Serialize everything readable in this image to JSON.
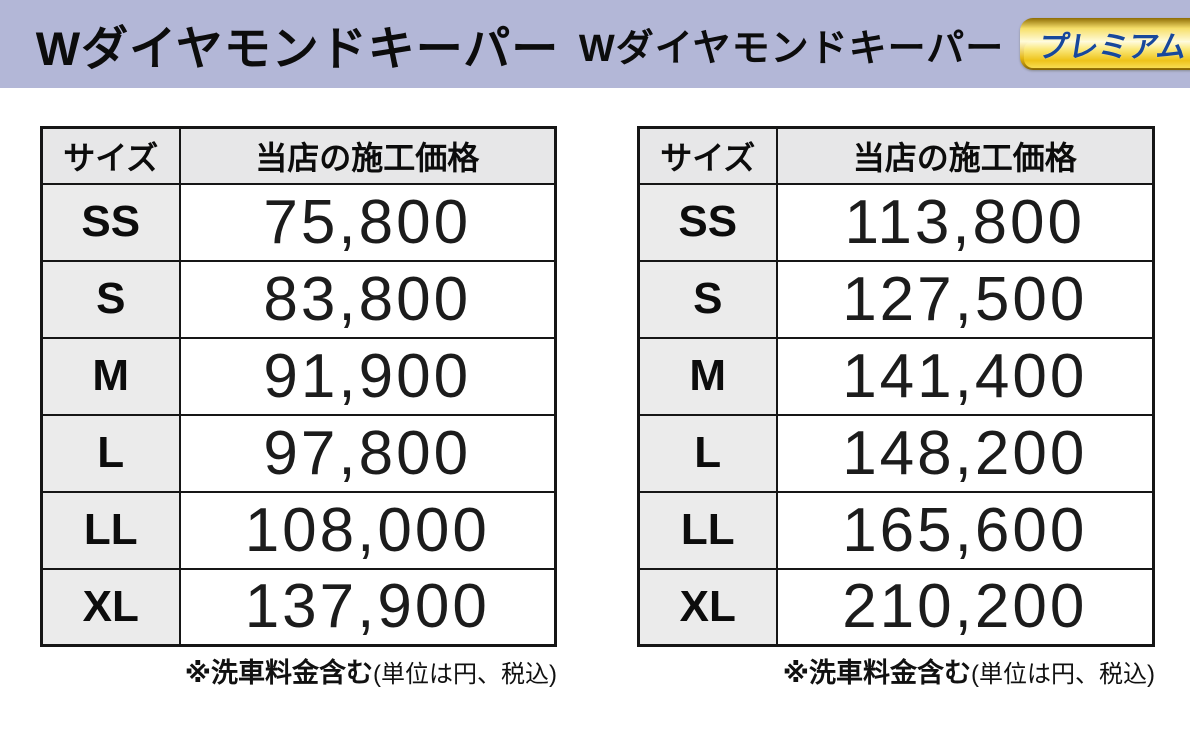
{
  "header": {
    "band_color": "#b3b7d7",
    "left_title": "Wダイヤモンドキーパー",
    "right_title": "Wダイヤモンドキーパー",
    "badge_label": "プレミアム",
    "badge_text_color": "#17489c",
    "badge_gold_dark": "#8e6d04",
    "badge_gold_light": "#fffbd8"
  },
  "table_standard": {
    "col_size": "サイズ",
    "col_price": "当店の施工価格",
    "rows": [
      {
        "size": "SS",
        "price": "75,800"
      },
      {
        "size": "S",
        "price": "83,800"
      },
      {
        "size": "M",
        "price": "91,900"
      },
      {
        "size": "L",
        "price": "97,800"
      },
      {
        "size": "LL",
        "price": "108,000"
      },
      {
        "size": "XL",
        "price": "137,900"
      }
    ],
    "footnote_bold": "※洗車料金含む",
    "footnote_paren": "(単位は円、税込)"
  },
  "table_premium": {
    "col_size": "サイズ",
    "col_price": "当店の施工価格",
    "rows": [
      {
        "size": "SS",
        "price": "113,800"
      },
      {
        "size": "S",
        "price": "127,500"
      },
      {
        "size": "M",
        "price": "141,400"
      },
      {
        "size": "L",
        "price": "148,200"
      },
      {
        "size": "LL",
        "price": "165,600"
      },
      {
        "size": "XL",
        "price": "210,200"
      }
    ],
    "footnote_bold": "※洗車料金含む",
    "footnote_paren": "(単位は円、税込)"
  }
}
